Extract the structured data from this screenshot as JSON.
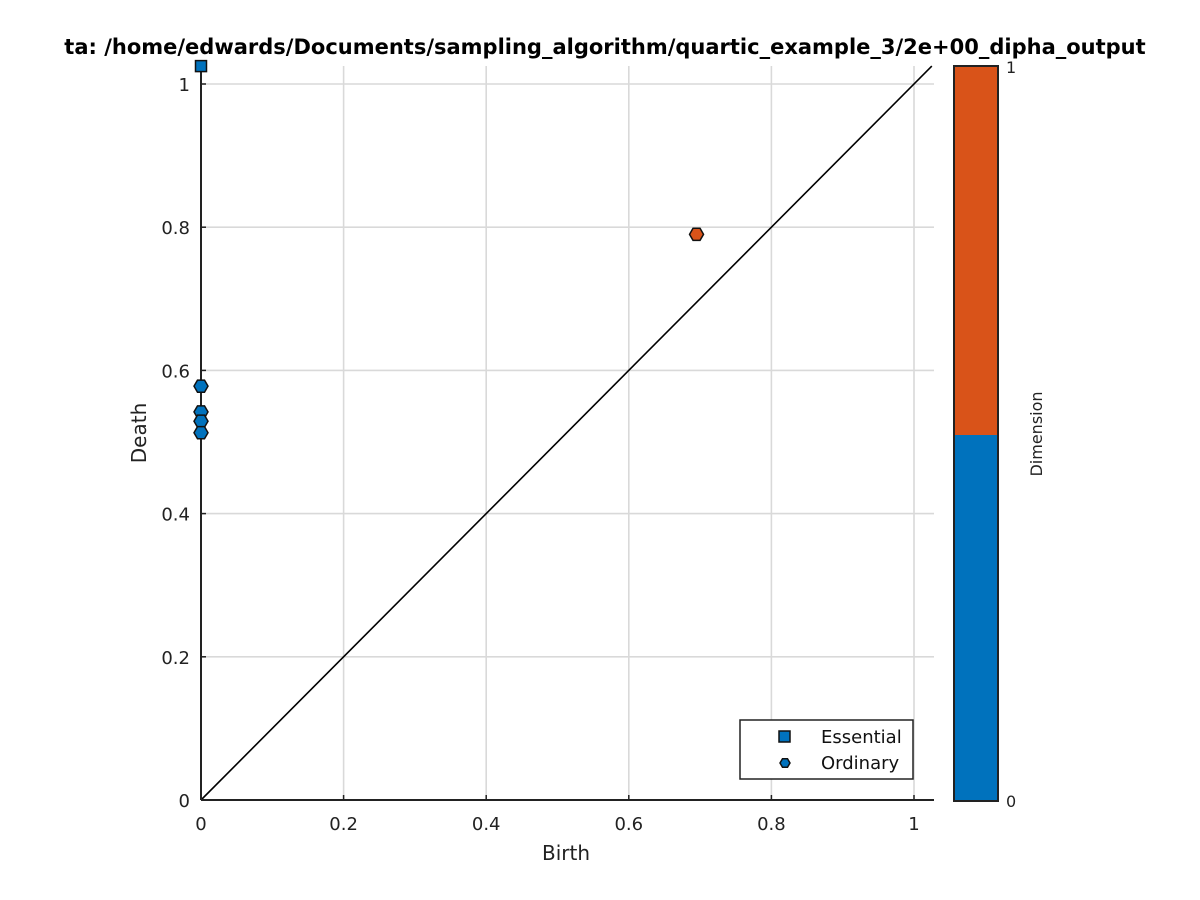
{
  "chart_data": {
    "type": "scatter",
    "title": "ta: /home/edwards/Documents/sampling_algorithm/quartic_example_3/2e+00_dipha_output",
    "xlabel": "Birth",
    "ylabel": "Death",
    "xlim": [
      0,
      1.025
    ],
    "ylim": [
      0,
      1.025
    ],
    "xticks": [
      0,
      0.2,
      0.4,
      0.6,
      0.8,
      1
    ],
    "xtick_labels": [
      "0",
      "0.2",
      "0.4",
      "0.6",
      "0.8",
      "1"
    ],
    "yticks": [
      0,
      0.2,
      0.4,
      0.6,
      0.8,
      1
    ],
    "ytick_labels": [
      "0",
      "0.2",
      "0.4",
      "0.6",
      "0.8",
      "1"
    ],
    "grid": true,
    "diagonal": true,
    "legend_position": "bottom-right",
    "legend": [
      {
        "label": "Essential",
        "marker": "square"
      },
      {
        "label": "Ordinary",
        "marker": "hexagon"
      }
    ],
    "points": [
      {
        "birth": 0.0,
        "death": 1.025,
        "dimension": 0,
        "type": "Essential"
      },
      {
        "birth": 0.0,
        "death": 0.578,
        "dimension": 0,
        "type": "Ordinary"
      },
      {
        "birth": 0.0,
        "death": 0.542,
        "dimension": 0,
        "type": "Ordinary"
      },
      {
        "birth": 0.0,
        "death": 0.529,
        "dimension": 0,
        "type": "Ordinary"
      },
      {
        "birth": 0.0,
        "death": 0.513,
        "dimension": 0,
        "type": "Ordinary"
      },
      {
        "birth": 0.695,
        "death": 0.79,
        "dimension": 1,
        "type": "Ordinary"
      }
    ],
    "colorbar": {
      "label": "Dimension",
      "min_label": "0",
      "max_label": "1",
      "colors": [
        "#0072bd",
        "#d95319"
      ]
    }
  }
}
